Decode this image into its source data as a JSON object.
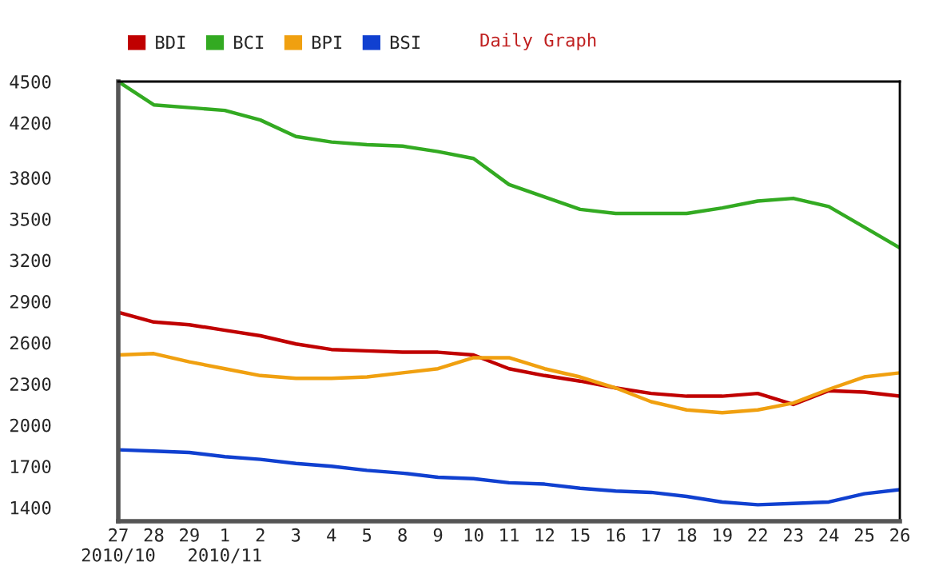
{
  "chart_data": {
    "type": "line",
    "title": "Daily Graph",
    "categories": [
      "27\n2010/10",
      "28",
      "29",
      "1\n2010/11",
      "2",
      "3",
      "4",
      "5",
      "8",
      "9",
      "10",
      "11",
      "12",
      "15",
      "16",
      "17",
      "18",
      "19",
      "22",
      "23",
      "24",
      "25",
      "26"
    ],
    "series": [
      {
        "name": "BDI",
        "color": "#c00000",
        "values": [
          2820,
          2750,
          2730,
          2690,
          2650,
          2590,
          2550,
          2540,
          2530,
          2530,
          2510,
          2410,
          2360,
          2320,
          2270,
          2230,
          2210,
          2210,
          2230,
          2150,
          2250,
          2240,
          2210
        ]
      },
      {
        "name": "BCI",
        "color": "#33aa22",
        "values": [
          4500,
          4330,
          4310,
          4290,
          4220,
          4100,
          4060,
          4040,
          4030,
          3990,
          3940,
          3750,
          3660,
          3570,
          3540,
          3540,
          3540,
          3580,
          3630,
          3650,
          3590,
          3440,
          3290
        ]
      },
      {
        "name": "BPI",
        "color": "#f0a010",
        "values": [
          2510,
          2520,
          2460,
          2410,
          2360,
          2340,
          2340,
          2350,
          2380,
          2410,
          2490,
          2490,
          2410,
          2350,
          2270,
          2170,
          2110,
          2090,
          2110,
          2160,
          2260,
          2350,
          2380
        ]
      },
      {
        "name": "BSI",
        "color": "#1040d0",
        "values": [
          1820,
          1810,
          1800,
          1770,
          1750,
          1720,
          1700,
          1670,
          1650,
          1620,
          1610,
          1580,
          1570,
          1540,
          1520,
          1510,
          1480,
          1440,
          1420,
          1430,
          1440,
          1500,
          1530
        ]
      }
    ],
    "ylim": [
      1300,
      4500
    ],
    "yticks": [
      1400,
      1700,
      2000,
      2300,
      2600,
      2900,
      3200,
      3500,
      3800,
      4200,
      4500
    ],
    "legend": "top",
    "grid": false,
    "marker": "none",
    "line_style": "solid"
  }
}
